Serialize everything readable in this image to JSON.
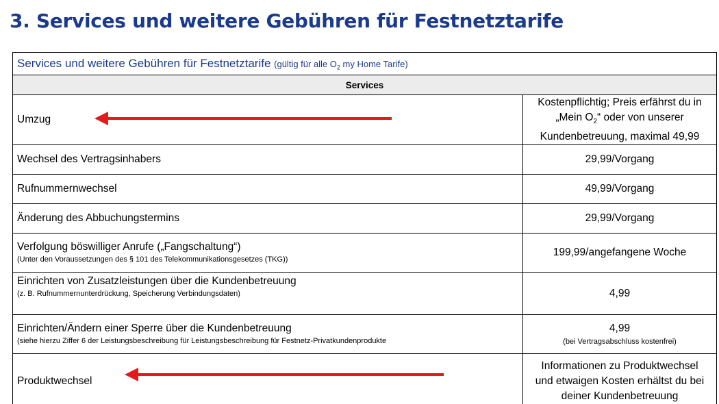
{
  "heading": "3. Services und weitere Gebühren für Festnetztarife",
  "table": {
    "title": "Services und weitere Gebühren für Festnetztarife",
    "title_note_prefix": "(gültig für alle O",
    "title_note_sub": "2",
    "title_note_suffix": " my Home Tarife)",
    "section": "Services",
    "rows": [
      {
        "label": "Umzug",
        "value_line1": "Kostenpflichtig; Preis erfährst du in",
        "value_line2_prefix": "„Mein O",
        "value_line2_sub": "2",
        "value_line2_suffix": "“ oder von unserer",
        "value_line3": "Kundenbetreuung, maximal 49,99"
      },
      {
        "label": "Wechsel des Vertragsinhabers",
        "value": "29,99/Vorgang"
      },
      {
        "label": "Rufnummernwechsel",
        "value": "49,99/Vorgang"
      },
      {
        "label": "Änderung des Abbuchungstermins",
        "value": "29,99/Vorgang"
      },
      {
        "label": "Verfolgung böswilliger Anrufe („Fangschaltung“)",
        "note": "(Unter den Voraussetzungen des § 101 des Telekommunikationsgesetzes (TKG))",
        "value": "199,99/angefangene Woche"
      },
      {
        "label": "Einrichten von Zusatzleistungen über die Kundenbetreuung",
        "note": "(z. B. Rufnummernunterdrückung, Speicherung Verbindungsdaten)",
        "value": "4,99"
      },
      {
        "label": "Einrichten/Ändern einer Sperre über die Kundenbetreuung",
        "note": "(siehe hierzu Ziffer 6 der Leistungsbeschreibung für Leistungsbeschreibung für Festnetz-Privatkundenprodukte",
        "value": "4,99",
        "value_note": "(bei Vertragsabschluss kostenfrei)"
      },
      {
        "label": "Produktwechsel",
        "value_line1": "Informationen zu Produktwechsel",
        "value_line2": "und etwaigen Kosten erhältst du bei",
        "value_line3": "deiner Kundenbetreuung"
      }
    ]
  },
  "colors": {
    "heading": "#1b3a8c",
    "arrow": "#e21b1b",
    "section_bg": "#ececec"
  },
  "annotations": [
    "red-arrow-umzug",
    "red-arrow-produktwechsel"
  ]
}
